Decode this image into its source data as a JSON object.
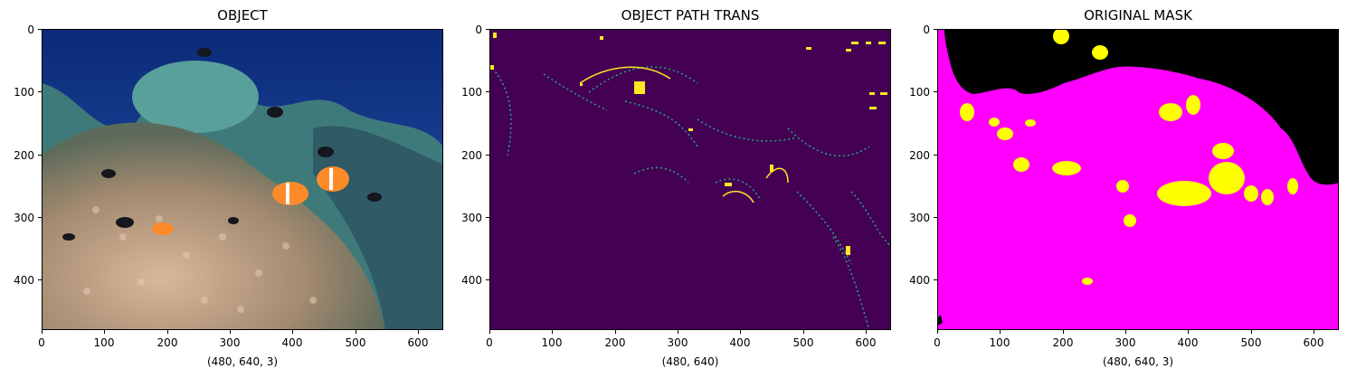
{
  "panels": [
    {
      "title": "OBJECT",
      "xlabel": "(480, 640, 3)"
    },
    {
      "title": "OBJECT PATH TRANS",
      "xlabel": "(480, 640)"
    },
    {
      "title": "ORIGINAL MASK",
      "xlabel": "(480, 640, 3)"
    }
  ],
  "axes": {
    "xticks": [
      "0",
      "100",
      "200",
      "300",
      "400",
      "500",
      "600"
    ],
    "yticks": [
      "0",
      "100",
      "200",
      "300",
      "400"
    ],
    "x_tick_values": [
      0,
      100,
      200,
      300,
      400,
      500,
      600
    ],
    "y_tick_values": [
      0,
      100,
      200,
      300,
      400
    ],
    "x_range": [
      0,
      640
    ],
    "y_range": [
      0,
      480
    ]
  },
  "colors": {
    "ocean": "#1a3a8a",
    "anemone": "#b89a7a",
    "coral": "#4f8a88",
    "clownfish": "#ff8a2a",
    "viridis_bg": "#440154",
    "viridis_edge": "#fde725",
    "viridis_mid": "#22a884",
    "mask_fg": "#ff00ff",
    "mask_bg": "#000000",
    "mask_obj": "#ffff00"
  }
}
